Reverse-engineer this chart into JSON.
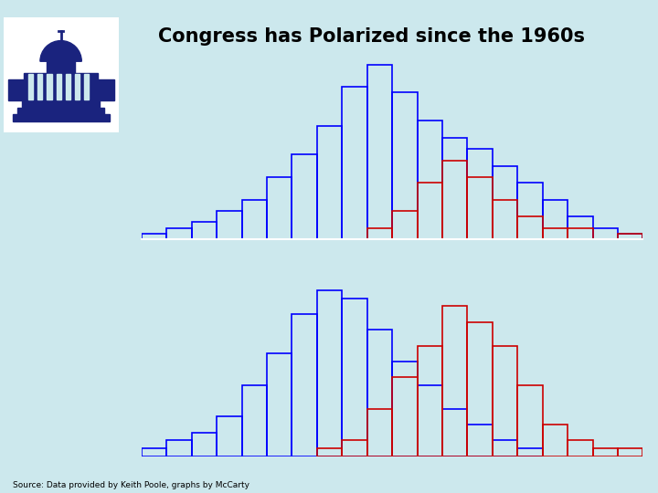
{
  "title": "Congress has Polarized since the 1960s",
  "source_text": "Source: Data provided by Keith Poole, graphs by McCarty",
  "bg_color": "#000000",
  "outer_bg": "#cce8ed",
  "blue_color": "#0000ff",
  "red_color": "#cc0000",
  "top_blue_values": [
    1,
    2,
    3,
    5,
    7,
    11,
    15,
    20,
    27,
    31,
    26,
    21,
    18,
    16,
    13,
    10,
    7,
    4,
    2,
    1
  ],
  "top_red_values": [
    0,
    0,
    0,
    0,
    0,
    0,
    0,
    0,
    0,
    2,
    5,
    10,
    14,
    11,
    7,
    4,
    2,
    2,
    0,
    1
  ],
  "bot_blue_values": [
    1,
    2,
    3,
    5,
    9,
    13,
    18,
    21,
    20,
    16,
    12,
    9,
    6,
    4,
    2,
    1,
    0,
    0,
    0,
    0
  ],
  "bot_red_values": [
    0,
    0,
    0,
    0,
    0,
    0,
    0,
    1,
    2,
    6,
    10,
    14,
    19,
    17,
    14,
    9,
    4,
    2,
    1,
    1
  ]
}
